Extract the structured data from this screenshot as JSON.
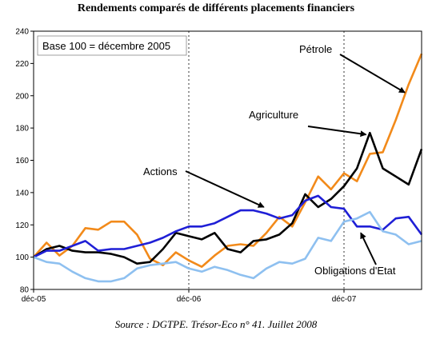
{
  "title": "Rendements comparés de différents placements financiers",
  "source": "Source : DGTPE. Trésor-Eco n° 41. Juillet 2008",
  "chart_data": {
    "type": "line",
    "note": "Base 100 = décembre 2005",
    "ylim": [
      80,
      240
    ],
    "yticks": [
      80,
      100,
      120,
      140,
      160,
      180,
      200,
      220,
      240
    ],
    "x_range": [
      0,
      30
    ],
    "xtick_positions": [
      0,
      12,
      24
    ],
    "xtick_labels": [
      "déc-05",
      "déc-06",
      "déc-07"
    ],
    "grid": "vertical dashed",
    "series": [
      {
        "name": "Pétrole",
        "color": "#f28a1a",
        "values": [
          100,
          109,
          101,
          107,
          118,
          117,
          122,
          122,
          114,
          99,
          95,
          103,
          98,
          94,
          101,
          107,
          108,
          107,
          115,
          125,
          119,
          134,
          150,
          142,
          152,
          147,
          164,
          165,
          185,
          207,
          226
        ]
      },
      {
        "name": "Agriculture",
        "color": "#000000",
        "values": [
          100,
          105,
          107,
          104,
          103,
          103,
          102,
          100,
          96,
          97,
          105,
          115,
          113,
          111,
          115,
          105,
          103,
          110,
          111,
          114,
          121,
          139,
          131,
          136,
          144,
          155,
          177,
          155,
          150,
          145,
          167
        ]
      },
      {
        "name": "Actions",
        "color": "#1f1fd6",
        "values": [
          100,
          104,
          104,
          107,
          110,
          104,
          105,
          105,
          107,
          109,
          112,
          116,
          119,
          119,
          121,
          125,
          129,
          129,
          127,
          124,
          126,
          135,
          138,
          131,
          130,
          119,
          119,
          117,
          124,
          125,
          114
        ]
      },
      {
        "name": "Obligations d'Etat",
        "color": "#8ec0f0",
        "values": [
          100,
          97,
          96,
          91,
          87,
          85,
          85,
          87,
          93,
          95,
          96,
          97,
          93,
          91,
          94,
          92,
          89,
          87,
          93,
          97,
          96,
          99,
          112,
          110,
          122,
          124,
          128,
          116,
          114,
          108,
          110
        ]
      }
    ],
    "annotations": [
      {
        "text": "Pétrole",
        "series": "Pétrole",
        "arrow_to": [
          28.7,
          202
        ]
      },
      {
        "text": "Agriculture",
        "series": "Agriculture",
        "arrow_to": [
          25.7,
          176
        ]
      },
      {
        "text": "Actions",
        "series": "Actions",
        "arrow_to": [
          17.8,
          131
        ]
      },
      {
        "text": "Obligations d'Etat",
        "series": "Obligations d'Etat",
        "arrow_to": [
          25.3,
          115
        ]
      }
    ]
  }
}
